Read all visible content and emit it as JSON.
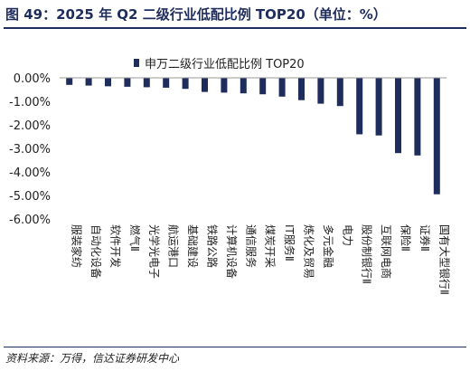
{
  "title": "图 49：2025 年 Q2 二级行业低配比例 TOP20（单位：%）",
  "source": "资料来源：万得，信达证券研发中心",
  "chart_data": {
    "type": "bar",
    "legend": {
      "label": "申万二级行业低配比例 TOP20",
      "position": "top-center"
    },
    "bar_color": "#1f2d5c",
    "ylim": [
      -6,
      0
    ],
    "yticks": [
      "0.00%",
      "-1.00%",
      "-2.00%",
      "-3.00%",
      "-4.00%",
      "-5.00%",
      "-6.00%"
    ],
    "grid": false,
    "categories": [
      "服装家纺",
      "自动化设备",
      "软件开发",
      "燃气Ⅱ",
      "光学光电子",
      "航运港口",
      "基础建设",
      "铁路公路",
      "计算机设备",
      "通信服务",
      "煤炭开采",
      "IT服务Ⅱ",
      "炼化及贸易",
      "多元金融",
      "电力",
      "股份制银行Ⅱ",
      "互联网电商",
      "保险Ⅱ",
      "证券Ⅱ",
      "国有大型银行Ⅱ"
    ],
    "series": [
      {
        "values": [
          -0.3,
          -0.33,
          -0.36,
          -0.38,
          -0.4,
          -0.42,
          -0.47,
          -0.6,
          -0.63,
          -0.66,
          -0.7,
          -0.8,
          -0.95,
          -1.1,
          -1.2,
          -2.4,
          -2.45,
          -3.2,
          -3.3,
          -4.95
        ]
      }
    ]
  }
}
